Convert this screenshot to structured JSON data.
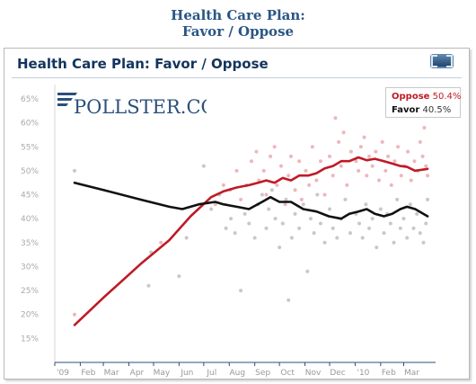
{
  "page": {
    "heading_line_1": "Health Care Plan:",
    "heading_line_2": "Favor / Oppose"
  },
  "widget": {
    "title": "Health Care Plan: Favor / Oppose",
    "expand_icon": "expand-window-icon"
  },
  "logo": {
    "text": "POLLSTER.COM",
    "color": "#2b4f7a"
  },
  "legend": [
    {
      "name": "Oppose",
      "value": "50.4%",
      "color": "#bf1a25"
    },
    {
      "name": "Favor",
      "value": "40.5%",
      "color": "#111111"
    }
  ],
  "chart_data": {
    "type": "line",
    "title": "Health Care Plan: Favor / Oppose",
    "xlabel": "",
    "ylabel": "",
    "x_start": "2009-01-01",
    "x_end": "2010-03-31",
    "xticks": [
      "'09",
      "Feb",
      "Mar",
      "Apr",
      "May",
      "Jun",
      "Jul",
      "Aug",
      "Sep",
      "Oct",
      "Nov",
      "Dec",
      "'10",
      "Feb",
      "Mar"
    ],
    "ylim": [
      10,
      68
    ],
    "yticks": [
      "15%",
      "20%",
      "25%",
      "30%",
      "35%",
      "40%",
      "45%",
      "50%",
      "55%",
      "60%",
      "65%"
    ],
    "grid": false,
    "legend_position": "top-right",
    "series": [
      {
        "name": "Oppose",
        "color": "#bf1a25",
        "points": [
          [
            "2009-01-25",
            17.8
          ],
          [
            "2009-03-01",
            23.5
          ],
          [
            "2009-04-15",
            30.5
          ],
          [
            "2009-05-20",
            35.5
          ],
          [
            "2009-06-15",
            40.5
          ],
          [
            "2009-07-10",
            44.5
          ],
          [
            "2009-07-25",
            45.7
          ],
          [
            "2009-08-10",
            46.5
          ],
          [
            "2009-08-25",
            47.0
          ],
          [
            "2009-09-05",
            47.5
          ],
          [
            "2009-09-15",
            48.0
          ],
          [
            "2009-09-25",
            47.5
          ],
          [
            "2009-10-05",
            48.5
          ],
          [
            "2009-10-15",
            48.0
          ],
          [
            "2009-10-25",
            49.0
          ],
          [
            "2009-11-05",
            49.0
          ],
          [
            "2009-11-15",
            49.5
          ],
          [
            "2009-11-25",
            50.5
          ],
          [
            "2009-12-05",
            51.0
          ],
          [
            "2009-12-15",
            52.0
          ],
          [
            "2009-12-25",
            52.0
          ],
          [
            "2010-01-05",
            52.8
          ],
          [
            "2010-01-15",
            52.2
          ],
          [
            "2010-01-25",
            52.5
          ],
          [
            "2010-02-05",
            52.0
          ],
          [
            "2010-02-15",
            51.5
          ],
          [
            "2010-02-25",
            51.0
          ],
          [
            "2010-03-05",
            50.8
          ],
          [
            "2010-03-15",
            50.0
          ],
          [
            "2010-03-30",
            50.4
          ]
        ]
      },
      {
        "name": "Favor",
        "color": "#111111",
        "points": [
          [
            "2009-01-25",
            47.5
          ],
          [
            "2009-03-01",
            46.0
          ],
          [
            "2009-04-15",
            44.0
          ],
          [
            "2009-05-20",
            42.5
          ],
          [
            "2009-06-05",
            42.0
          ],
          [
            "2009-06-25",
            43.0
          ],
          [
            "2009-07-15",
            43.5
          ],
          [
            "2009-07-25",
            43.0
          ],
          [
            "2009-08-10",
            42.5
          ],
          [
            "2009-08-25",
            42.0
          ],
          [
            "2009-09-10",
            43.5
          ],
          [
            "2009-09-20",
            44.5
          ],
          [
            "2009-10-01",
            43.5
          ],
          [
            "2009-10-15",
            43.5
          ],
          [
            "2009-10-30",
            42.0
          ],
          [
            "2009-11-15",
            41.5
          ],
          [
            "2009-11-30",
            40.5
          ],
          [
            "2009-12-15",
            40.0
          ],
          [
            "2009-12-25",
            41.0
          ],
          [
            "2010-01-05",
            41.5
          ],
          [
            "2010-01-15",
            42.0
          ],
          [
            "2010-01-25",
            41.0
          ],
          [
            "2010-02-05",
            40.5
          ],
          [
            "2010-02-15",
            41.0
          ],
          [
            "2010-02-25",
            42.0
          ],
          [
            "2010-03-05",
            42.5
          ],
          [
            "2010-03-15",
            42.0
          ],
          [
            "2010-03-30",
            40.5
          ]
        ]
      }
    ],
    "poll_points": {
      "Oppose": [
        [
          "2009-01-25",
          20
        ],
        [
          "2009-05-10",
          35
        ],
        [
          "2009-07-15",
          43
        ],
        [
          "2009-07-25",
          47
        ],
        [
          "2009-08-02",
          46
        ],
        [
          "2009-08-10",
          50
        ],
        [
          "2009-08-15",
          44
        ],
        [
          "2009-08-22",
          47
        ],
        [
          "2009-08-28",
          52
        ],
        [
          "2009-09-03",
          54
        ],
        [
          "2009-09-06",
          48
        ],
        [
          "2009-09-12",
          50
        ],
        [
          "2009-09-15",
          45
        ],
        [
          "2009-09-20",
          53
        ],
        [
          "2009-09-25",
          55
        ],
        [
          "2009-09-28",
          47
        ],
        [
          "2009-10-03",
          51
        ],
        [
          "2009-10-08",
          43
        ],
        [
          "2009-10-12",
          49
        ],
        [
          "2009-10-15",
          53
        ],
        [
          "2009-10-20",
          46
        ],
        [
          "2009-10-25",
          52
        ],
        [
          "2009-10-28",
          44
        ],
        [
          "2009-11-02",
          50
        ],
        [
          "2009-11-06",
          47
        ],
        [
          "2009-11-10",
          55
        ],
        [
          "2009-11-15",
          48
        ],
        [
          "2009-11-20",
          52
        ],
        [
          "2009-11-25",
          45
        ],
        [
          "2009-12-01",
          53
        ],
        [
          "2009-12-05",
          49
        ],
        [
          "2009-12-08",
          61
        ],
        [
          "2009-12-12",
          56
        ],
        [
          "2009-12-15",
          51
        ],
        [
          "2009-12-18",
          58
        ],
        [
          "2009-12-22",
          47
        ],
        [
          "2009-12-27",
          54
        ],
        [
          "2010-01-02",
          52
        ],
        [
          "2010-01-05",
          50
        ],
        [
          "2010-01-08",
          55
        ],
        [
          "2010-01-12",
          57
        ],
        [
          "2010-01-15",
          49
        ],
        [
          "2010-01-18",
          53
        ],
        [
          "2010-01-22",
          51
        ],
        [
          "2010-01-26",
          54
        ],
        [
          "2010-01-30",
          48
        ],
        [
          "2010-02-03",
          56
        ],
        [
          "2010-02-07",
          50
        ],
        [
          "2010-02-10",
          53
        ],
        [
          "2010-02-14",
          47
        ],
        [
          "2010-02-18",
          52
        ],
        [
          "2010-02-22",
          55
        ],
        [
          "2010-02-26",
          49
        ],
        [
          "2010-03-02",
          51
        ],
        [
          "2010-03-06",
          54
        ],
        [
          "2010-03-10",
          48
        ],
        [
          "2010-03-14",
          52
        ],
        [
          "2010-03-18",
          50
        ],
        [
          "2010-03-21",
          56
        ],
        [
          "2010-03-24",
          53
        ],
        [
          "2010-03-26",
          59
        ],
        [
          "2010-03-28",
          51
        ],
        [
          "2010-03-30",
          49
        ]
      ],
      "Favor": [
        [
          "2009-01-25",
          50
        ],
        [
          "2009-04-25",
          26
        ],
        [
          "2009-04-28",
          33
        ],
        [
          "2009-06-01",
          28
        ],
        [
          "2009-06-10",
          36
        ],
        [
          "2009-07-01",
          51
        ],
        [
          "2009-07-10",
          42
        ],
        [
          "2009-07-20",
          45
        ],
        [
          "2009-07-28",
          38
        ],
        [
          "2009-08-03",
          40
        ],
        [
          "2009-08-08",
          37
        ],
        [
          "2009-08-15",
          25
        ],
        [
          "2009-08-20",
          41
        ],
        [
          "2009-08-25",
          39
        ],
        [
          "2009-09-01",
          36
        ],
        [
          "2009-09-05",
          43
        ],
        [
          "2009-09-10",
          45
        ],
        [
          "2009-09-15",
          38
        ],
        [
          "2009-09-18",
          42
        ],
        [
          "2009-09-22",
          46
        ],
        [
          "2009-09-26",
          40
        ],
        [
          "2009-10-01",
          34
        ],
        [
          "2009-10-05",
          39
        ],
        [
          "2009-10-09",
          44
        ],
        [
          "2009-10-12",
          23
        ],
        [
          "2009-10-16",
          36
        ],
        [
          "2009-10-20",
          41
        ],
        [
          "2009-10-25",
          38
        ],
        [
          "2009-10-30",
          43
        ],
        [
          "2009-11-04",
          29
        ],
        [
          "2009-11-08",
          40
        ],
        [
          "2009-11-12",
          37
        ],
        [
          "2009-11-16",
          45
        ],
        [
          "2009-11-20",
          39
        ],
        [
          "2009-11-25",
          35
        ],
        [
          "2009-12-01",
          42
        ],
        [
          "2009-12-05",
          38
        ],
        [
          "2009-12-10",
          36
        ],
        [
          "2009-12-15",
          40
        ],
        [
          "2009-12-20",
          44
        ],
        [
          "2009-12-26",
          37
        ],
        [
          "2010-01-02",
          41
        ],
        [
          "2010-01-06",
          39
        ],
        [
          "2010-01-10",
          36
        ],
        [
          "2010-01-14",
          43
        ],
        [
          "2010-01-18",
          38
        ],
        [
          "2010-01-22",
          40
        ],
        [
          "2010-01-27",
          34
        ],
        [
          "2010-02-01",
          42
        ],
        [
          "2010-02-05",
          37
        ],
        [
          "2010-02-09",
          41
        ],
        [
          "2010-02-13",
          39
        ],
        [
          "2010-02-17",
          35
        ],
        [
          "2010-02-21",
          44
        ],
        [
          "2010-02-25",
          38
        ],
        [
          "2010-03-01",
          40
        ],
        [
          "2010-03-05",
          36
        ],
        [
          "2010-03-09",
          43
        ],
        [
          "2010-03-13",
          38
        ],
        [
          "2010-03-17",
          41
        ],
        [
          "2010-03-21",
          37
        ],
        [
          "2010-03-25",
          35
        ],
        [
          "2010-03-28",
          39
        ],
        [
          "2010-03-30",
          44
        ]
      ]
    }
  }
}
